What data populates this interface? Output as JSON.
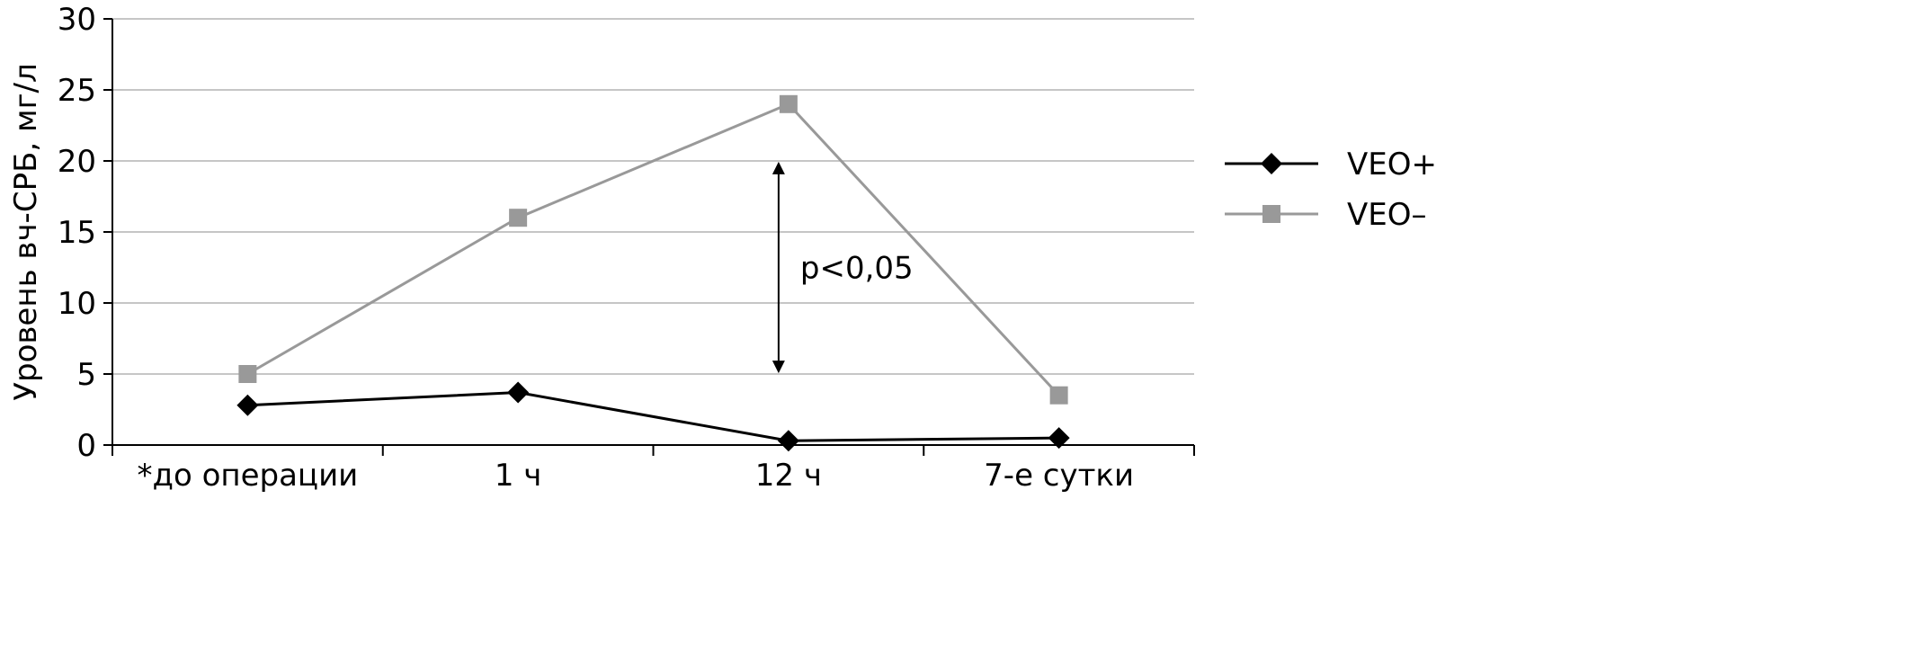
{
  "chart_data": {
    "type": "line",
    "title": "",
    "xlabel": "",
    "ylabel": "Уровень вч-СРБ, мг/л",
    "categories": [
      "*до операции",
      "1 ч",
      "12 ч",
      "7-е сутки"
    ],
    "ylim": [
      0,
      30
    ],
    "yticks": [
      0,
      5,
      10,
      15,
      20,
      25,
      30
    ],
    "grid": true,
    "legend_position": "right",
    "series": [
      {
        "name": "VEO+",
        "color": "#000000",
        "marker": "diamond",
        "values": [
          2.8,
          3.7,
          0.3,
          0.5
        ]
      },
      {
        "name": "VEO–",
        "color": "#999999",
        "marker": "square",
        "values": [
          5.0,
          16.0,
          24.0,
          3.5
        ]
      }
    ],
    "annotations": [
      {
        "text": "p<0,05",
        "category": "12 ч",
        "arrow_y_range": [
          5.5,
          19.5
        ],
        "text_y": 12.5
      }
    ]
  }
}
